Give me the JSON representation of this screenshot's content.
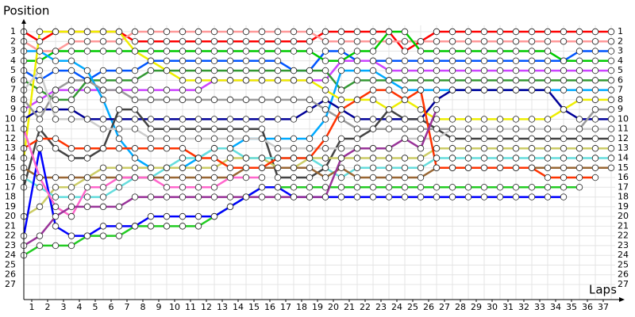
{
  "chart_data": {
    "type": "line",
    "y_label": "Position",
    "x_label": "Laps",
    "x": [
      null,
      1,
      2,
      3,
      4,
      5,
      6,
      7,
      8,
      9,
      10,
      11,
      12,
      13,
      14,
      15,
      16,
      17,
      18,
      19,
      20,
      21,
      22,
      23,
      24,
      25,
      26,
      27,
      28,
      29,
      30,
      31,
      32,
      33,
      34,
      35,
      36,
      37
    ],
    "ylim": [
      1,
      27
    ],
    "yticks": [
      1,
      2,
      3,
      4,
      5,
      6,
      7,
      8,
      9,
      10,
      11,
      12,
      13,
      14,
      15,
      16,
      17,
      18,
      19,
      20,
      21,
      22,
      23,
      24,
      25,
      26,
      27
    ],
    "y_reversed": true,
    "grid": true,
    "series": [
      {
        "color": "#ff0000",
        "values": [
          1,
          2,
          1,
          1,
          1,
          1,
          1,
          2,
          2,
          2,
          2,
          2,
          2,
          2,
          2,
          2,
          2,
          2,
          2,
          1,
          1,
          1,
          1,
          1,
          3,
          2,
          1,
          1,
          1,
          1,
          1,
          1,
          1,
          1,
          1,
          1,
          1,
          1
        ]
      },
      {
        "color": "#ff9999",
        "values": [
          2,
          3,
          3,
          2,
          2,
          2,
          2,
          1,
          1,
          1,
          1,
          1,
          1,
          1,
          1,
          1,
          1,
          1,
          1,
          2,
          2,
          2,
          2,
          2,
          2,
          2,
          2,
          2,
          2,
          2,
          2,
          2,
          2,
          2,
          2,
          2,
          2,
          2
        ]
      },
      {
        "color": "#0055ff",
        "values": [
          5,
          6,
          5,
          5,
          6,
          5,
          5,
          5,
          4,
          4,
          4,
          4,
          4,
          4,
          4,
          4,
          4,
          5,
          5,
          3,
          3,
          4,
          4,
          4,
          4,
          4,
          4,
          4,
          4,
          4,
          4,
          4,
          4,
          4,
          4,
          3,
          3,
          3
        ]
      },
      {
        "color": "#00cc00",
        "values": [
          4,
          4,
          3,
          3,
          3,
          3,
          3,
          3,
          3,
          3,
          3,
          3,
          3,
          3,
          3,
          3,
          3,
          3,
          3,
          4,
          4,
          3,
          3,
          1,
          1,
          3,
          3,
          3,
          3,
          3,
          3,
          3,
          3,
          3,
          4,
          4,
          4,
          4
        ]
      },
      {
        "color": "#cc44ff",
        "values": [
          9,
          8,
          7,
          7,
          7,
          7,
          7,
          7,
          7,
          7,
          7,
          7,
          6,
          6,
          6,
          6,
          6,
          6,
          6,
          6,
          4,
          4,
          4,
          5,
          5,
          5,
          5,
          5,
          5,
          5,
          5,
          5,
          5,
          5,
          5,
          5,
          5,
          5
        ]
      },
      {
        "color": "#339933",
        "values": [
          6,
          7,
          8,
          8,
          6,
          6,
          6,
          6,
          5,
          5,
          5,
          5,
          5,
          5,
          5,
          5,
          5,
          5,
          5,
          5,
          7,
          6,
          6,
          6,
          6,
          6,
          6,
          6,
          6,
          6,
          6,
          6,
          6,
          6,
          6,
          6,
          6,
          6
        ]
      },
      {
        "color": "#00aaff",
        "values": [
          3,
          3,
          4,
          4,
          5,
          8,
          12,
          14,
          15,
          15,
          15,
          14,
          13,
          13,
          12,
          12,
          12,
          12,
          12,
          10,
          5,
          5,
          5,
          6,
          7,
          7,
          7,
          7,
          7,
          7,
          7,
          7,
          7,
          7,
          7,
          7,
          7,
          7
        ]
      },
      {
        "color": "#eeee00",
        "values": [
          14,
          1,
          1,
          1,
          1,
          1,
          1,
          3,
          4,
          5,
          6,
          6,
          6,
          6,
          6,
          6,
          6,
          6,
          6,
          7,
          8,
          8,
          8,
          9,
          8,
          9,
          10,
          10,
          10,
          10,
          10,
          10,
          10,
          10,
          9,
          8,
          8,
          8
        ]
      },
      {
        "color": "#000099",
        "values": [
          10,
          9,
          9,
          9,
          10,
          10,
          10,
          10,
          10,
          10,
          10,
          10,
          10,
          10,
          10,
          10,
          10,
          10,
          9,
          8,
          9,
          10,
          10,
          10,
          10,
          10,
          8,
          7,
          7,
          7,
          7,
          7,
          7,
          7,
          9,
          10,
          10,
          10
        ]
      },
      {
        "color": "#999999",
        "values": [
          8,
          10,
          7,
          6,
          6,
          7,
          7,
          8,
          8,
          8,
          8,
          8,
          8,
          8,
          8,
          8,
          8,
          8,
          8,
          9,
          10,
          11,
          11,
          11,
          11,
          11,
          11,
          11,
          11,
          11,
          11,
          11,
          11,
          11,
          11,
          11,
          9,
          9
        ]
      },
      {
        "color": "#444444",
        "values": [
          17,
          11,
          13,
          14,
          14,
          13,
          9,
          9,
          11,
          11,
          11,
          11,
          11,
          11,
          11,
          11,
          16,
          16,
          16,
          15,
          12,
          12,
          11,
          9,
          10,
          10,
          11,
          12,
          12,
          12,
          12,
          12,
          12,
          12,
          12,
          12,
          12,
          12
        ]
      },
      {
        "color": "#cccccc",
        "values": [
          7,
          5,
          10,
          10,
          10,
          11,
          11,
          11,
          12,
          12,
          12,
          12,
          12,
          12,
          12,
          12,
          13,
          13,
          13,
          13,
          13,
          13,
          13,
          13,
          12,
          12,
          12,
          11,
          11,
          11,
          11,
          11,
          11,
          11,
          11,
          11,
          11,
          11
        ]
      },
      {
        "color": "#cccc66",
        "values": [
          20,
          19,
          17,
          17,
          16,
          15,
          15,
          15,
          15,
          15,
          15,
          15,
          15,
          14,
          14,
          14,
          15,
          15,
          14,
          14,
          14,
          14,
          14,
          14,
          14,
          14,
          13,
          13,
          13,
          13,
          13,
          13,
          13,
          13,
          13,
          13,
          13,
          13
        ]
      },
      {
        "color": "#66dddd",
        "values": [
          16,
          17,
          18,
          18,
          18,
          18,
          17,
          16,
          16,
          15,
          14,
          14,
          13,
          13,
          14,
          14,
          14,
          14,
          14,
          15,
          16,
          15,
          15,
          15,
          15,
          15,
          14,
          14,
          14,
          14,
          14,
          14,
          14,
          14,
          14,
          14,
          14,
          14
        ]
      },
      {
        "color": "#996633",
        "values": [
          15,
          16,
          16,
          16,
          16,
          16,
          16,
          16,
          16,
          16,
          16,
          16,
          16,
          16,
          15,
          15,
          15,
          15,
          15,
          16,
          15,
          16,
          16,
          16,
          16,
          16,
          15,
          15,
          15,
          15,
          15,
          15,
          15,
          15,
          15,
          15,
          15,
          15
        ]
      },
      {
        "color": "#ff3300",
        "values": [
          13,
          12,
          12,
          13,
          13,
          13,
          13,
          13,
          13,
          13,
          13,
          14,
          14,
          15,
          15,
          15,
          14,
          14,
          14,
          12,
          9,
          8,
          7,
          7,
          8,
          7,
          15,
          15,
          15,
          15,
          15,
          15,
          15,
          16,
          16,
          16,
          16,
          null
        ]
      },
      {
        "color": "#22cc22",
        "values": [
          24,
          23,
          23,
          23,
          22,
          22,
          22,
          21,
          21,
          21,
          21,
          21,
          20,
          19,
          18,
          17,
          17,
          17,
          17,
          17,
          17,
          17,
          17,
          17,
          17,
          17,
          17,
          17,
          17,
          17,
          17,
          17,
          17,
          17,
          17,
          17,
          null,
          null
        ]
      },
      {
        "color": "#0000ff",
        "values": [
          22,
          13,
          21,
          22,
          22,
          21,
          21,
          21,
          20,
          20,
          20,
          20,
          20,
          19,
          18,
          17,
          17,
          18,
          18,
          18,
          18,
          18,
          18,
          18,
          18,
          18,
          18,
          18,
          18,
          18,
          18,
          18,
          18,
          18,
          18,
          null,
          null,
          null
        ]
      },
      {
        "color": "#ff66cc",
        "values": [
          11,
          16,
          19,
          20,
          17,
          17,
          16,
          16,
          16,
          17,
          17,
          17,
          17,
          16,
          16,
          16,
          null,
          null,
          null,
          null,
          null,
          null,
          null,
          null,
          null,
          null,
          null,
          null,
          null,
          null,
          null,
          null,
          null,
          null,
          null,
          null,
          null,
          null
        ]
      },
      {
        "color": "#993399",
        "values": [
          23,
          22,
          20,
          19,
          19,
          19,
          19,
          18,
          18,
          18,
          18,
          18,
          18,
          18,
          18,
          18,
          18,
          18,
          18,
          18,
          14,
          13,
          13,
          13,
          12,
          13,
          9,
          null,
          null,
          null,
          null,
          null,
          null,
          null,
          null,
          null,
          null,
          null
        ]
      }
    ]
  }
}
